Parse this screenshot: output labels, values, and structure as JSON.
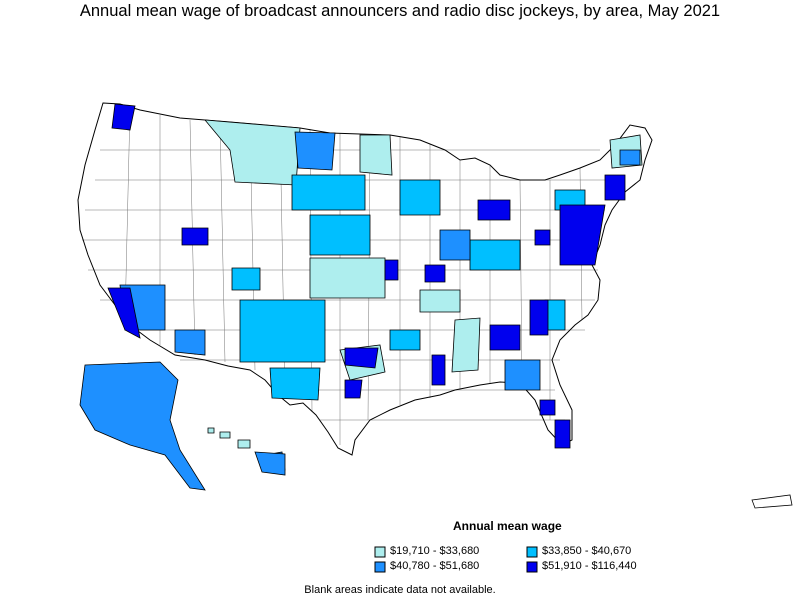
{
  "title": "Annual mean wage of broadcast announcers and radio disc jockeys, by area, May 2021",
  "legend": {
    "title": "Annual mean wage",
    "items": [
      {
        "label": "$19,710 - $33,680",
        "color": "#aeeeee"
      },
      {
        "label": "$33,850 - $40,670",
        "color": "#00bfff"
      },
      {
        "label": "$40,780 - $51,680",
        "color": "#1e90ff"
      },
      {
        "label": "$51,910 - $116,440",
        "color": "#0000ee"
      }
    ]
  },
  "note": "Blank areas indicate data not available.",
  "colors": {
    "c1": "#aeeeee",
    "c2": "#00bfff",
    "c3": "#1e90ff",
    "c4": "#0000ee",
    "blank": "#ffffff",
    "border": "#000000"
  }
}
